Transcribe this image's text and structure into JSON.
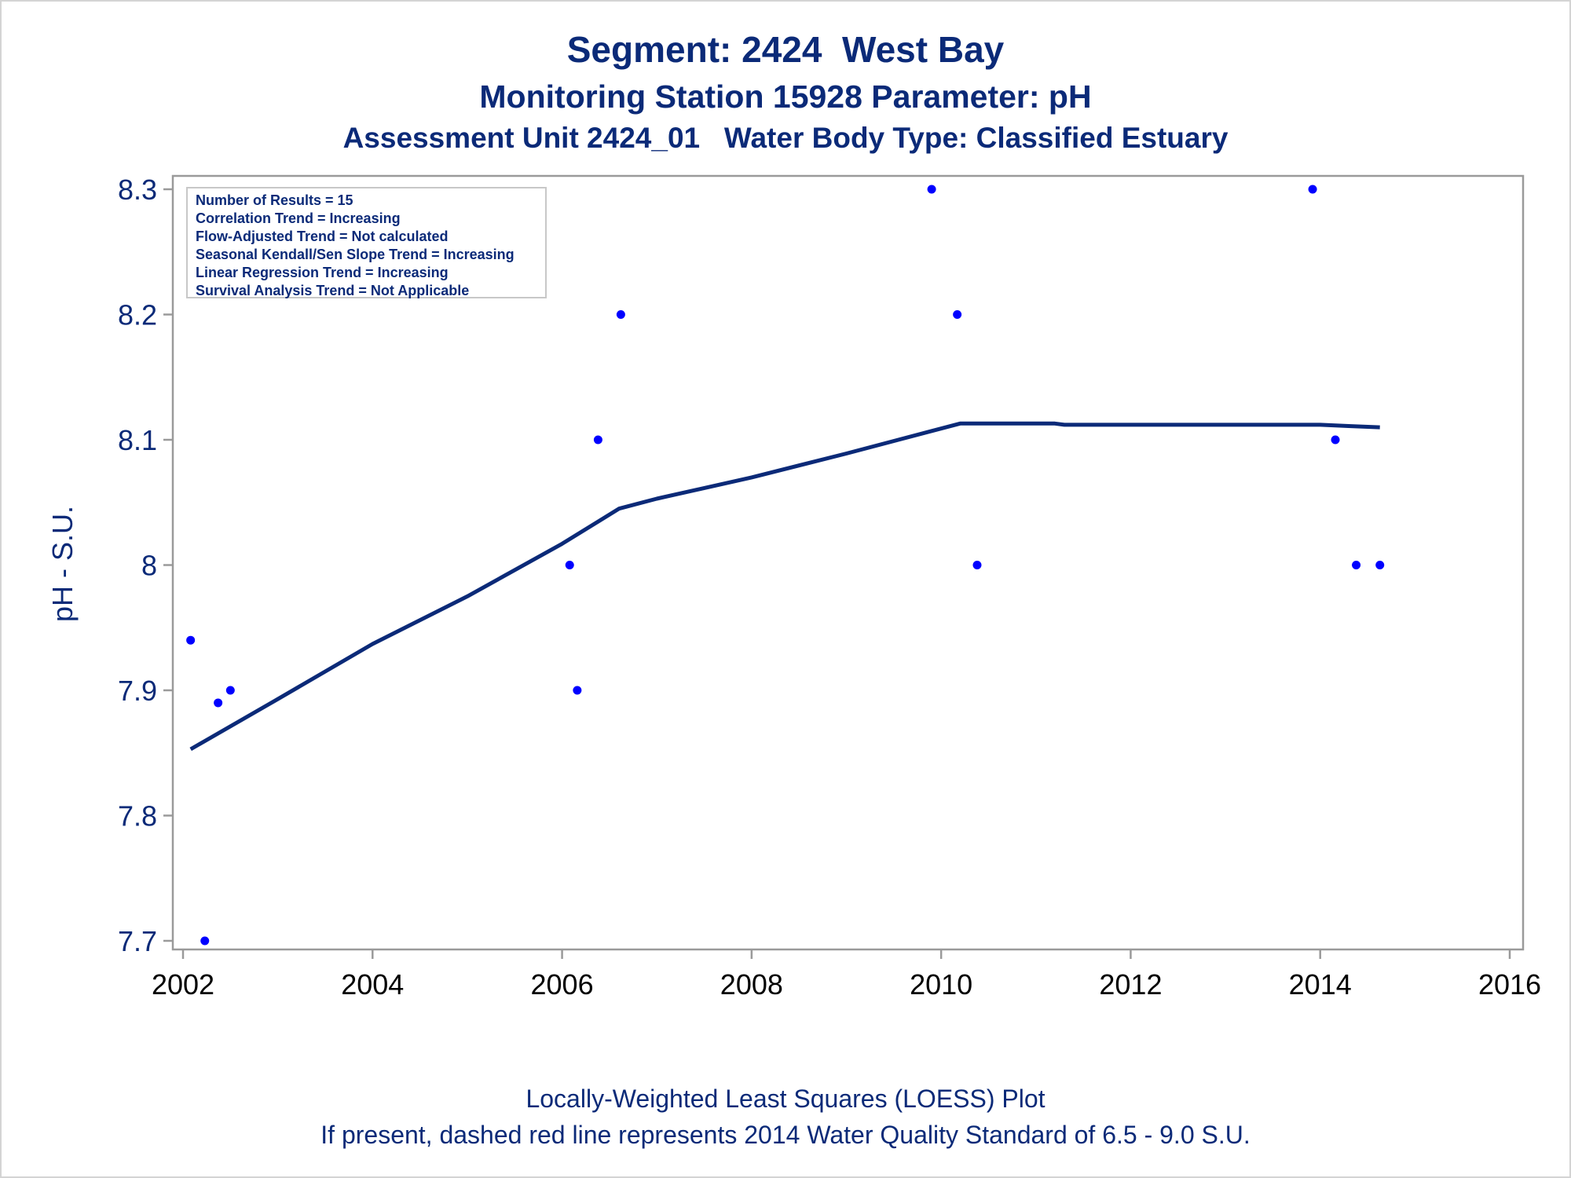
{
  "header": {
    "title": "Segment: 2424  West Bay",
    "subtitle1": "Monitoring Station 15928 Parameter: pH",
    "subtitle2": "Assessment Unit 2424_01   Water Body Type: Classified Estuary"
  },
  "stats": [
    "Number of Results = 15",
    "Correlation Trend = Increasing",
    "Flow-Adjusted Trend = Not calculated",
    "Seasonal Kendall/Sen Slope Trend = Increasing",
    "Linear Regression Trend = Increasing",
    "Survival Analysis Trend = Not Applicable"
  ],
  "footer": {
    "line1": "Locally-Weighted Least Squares (LOESS) Plot",
    "line2": "If present, dashed red line represents 2014 Water Quality Standard of 6.5 - 9.0 S.U."
  },
  "chart_data": {
    "type": "scatter",
    "ylabel": "pH - S.U.",
    "xlabel": "",
    "xlim": [
      2002,
      2016
    ],
    "ylim": [
      7.7,
      8.3
    ],
    "x_ticks": [
      "2002",
      "2004",
      "2006",
      "2008",
      "2010",
      "2012",
      "2014",
      "2016"
    ],
    "y_ticks": [
      "7.7",
      "7.8",
      "7.9",
      "8",
      "8.1",
      "8.2",
      "8.3"
    ],
    "grid": false,
    "colors": {
      "points": "#0000ff",
      "line": "#0b2a78",
      "text": "#0b2a78",
      "axis": "#9a9a9a"
    },
    "series": [
      {
        "name": "",
        "type": "scatter",
        "points": [
          {
            "x": 2002.08,
            "y": 7.94
          },
          {
            "x": 2002.23,
            "y": 7.7
          },
          {
            "x": 2002.37,
            "y": 7.89
          },
          {
            "x": 2002.5,
            "y": 7.9
          },
          {
            "x": 2006.08,
            "y": 8.0
          },
          {
            "x": 2006.16,
            "y": 7.9
          },
          {
            "x": 2006.38,
            "y": 8.1
          },
          {
            "x": 2006.62,
            "y": 8.2
          },
          {
            "x": 2009.9,
            "y": 8.3
          },
          {
            "x": 2010.17,
            "y": 8.2
          },
          {
            "x": 2010.38,
            "y": 8.0
          },
          {
            "x": 2013.92,
            "y": 8.3
          },
          {
            "x": 2014.16,
            "y": 8.1
          },
          {
            "x": 2014.38,
            "y": 8.0
          },
          {
            "x": 2014.63,
            "y": 8.0
          }
        ]
      },
      {
        "name": "",
        "type": "line",
        "points": [
          {
            "x": 2002.08,
            "y": 7.853
          },
          {
            "x": 2003.0,
            "y": 7.893
          },
          {
            "x": 2004.0,
            "y": 7.937
          },
          {
            "x": 2005.0,
            "y": 7.975
          },
          {
            "x": 2006.0,
            "y": 8.017
          },
          {
            "x": 2006.6,
            "y": 8.045
          },
          {
            "x": 2007.0,
            "y": 8.053
          },
          {
            "x": 2008.0,
            "y": 8.07
          },
          {
            "x": 2009.0,
            "y": 8.089
          },
          {
            "x": 2009.9,
            "y": 8.107
          },
          {
            "x": 2010.2,
            "y": 8.113
          },
          {
            "x": 2011.2,
            "y": 8.113
          },
          {
            "x": 2011.3,
            "y": 8.112
          },
          {
            "x": 2014.0,
            "y": 8.112
          },
          {
            "x": 2014.3,
            "y": 8.111
          },
          {
            "x": 2014.63,
            "y": 8.11
          }
        ]
      }
    ]
  }
}
